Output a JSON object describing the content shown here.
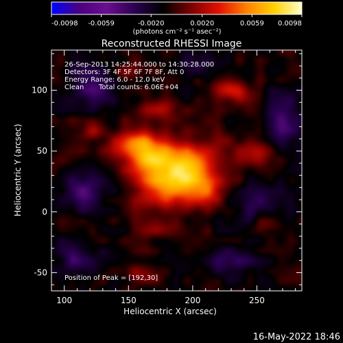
{
  "chart_data": {
    "type": "heatmap",
    "title": "Reconstructed RHESSI Image",
    "xlabel": "Heliocentric X (arcsec)",
    "ylabel": "Heliocentric Y (arcsec)",
    "xlim": [
      90,
      285
    ],
    "ylim": [
      -65,
      133
    ],
    "x_ticks": [
      100,
      150,
      200,
      250
    ],
    "y_ticks": [
      -50,
      0,
      50,
      100
    ],
    "colorbar": {
      "min": -0.0098,
      "max": 0.0098,
      "ticks": [
        -0.0098,
        -0.0059,
        -0.002,
        0.002,
        0.0059,
        0.0098
      ],
      "tick_labels": [
        "-0.0098",
        "-0.0059",
        "-0.0020",
        "0.0020",
        "0.0059",
        "0.0098"
      ],
      "unit_label": "(photons cm⁻² s⁻¹ asec⁻²)",
      "colors": [
        "#0000ff",
        "#4b0082",
        "#6a0f8e",
        "#2a0050",
        "#000000",
        "#7a0000",
        "#e01000",
        "#ff8000",
        "#ffd000",
        "#ffffc8"
      ]
    },
    "peak": {
      "x": 192,
      "y": 30
    },
    "blobs": [
      {
        "x": 190,
        "y": 30,
        "sx": 22,
        "sy": 12,
        "angle": -35,
        "amp": 0.0095
      },
      {
        "x": 155,
        "y": 55,
        "sx": 12,
        "sy": 9,
        "angle": 0,
        "amp": 0.0058
      },
      {
        "x": 170,
        "y": 45,
        "sx": 14,
        "sy": 10,
        "angle": -30,
        "amp": 0.006
      },
      {
        "x": 210,
        "y": 15,
        "sx": 12,
        "sy": 8,
        "angle": -30,
        "amp": 0.004
      },
      {
        "x": 175,
        "y": 85,
        "sx": 10,
        "sy": 6,
        "angle": 0,
        "amp": 0.003
      },
      {
        "x": 230,
        "y": 100,
        "sx": 14,
        "sy": 6,
        "angle": 10,
        "amp": 0.0032
      },
      {
        "x": 145,
        "y": 115,
        "sx": 8,
        "sy": 5,
        "angle": 0,
        "amp": 0.0025
      },
      {
        "x": 250,
        "y": 50,
        "sx": 10,
        "sy": 8,
        "angle": 0,
        "amp": 0.0025
      },
      {
        "x": 120,
        "y": 65,
        "sx": 8,
        "sy": 6,
        "angle": 0,
        "amp": 0.0022
      },
      {
        "x": 180,
        "y": -15,
        "sx": 12,
        "sy": 5,
        "angle": 0,
        "amp": 0.0024
      },
      {
        "x": 160,
        "y": -50,
        "sx": 14,
        "sy": 5,
        "angle": 0,
        "amp": 0.0015
      },
      {
        "x": 260,
        "y": -10,
        "sx": 8,
        "sy": 6,
        "angle": 0,
        "amp": 0.0018
      },
      {
        "x": 115,
        "y": 15,
        "sx": 12,
        "sy": 10,
        "angle": 0,
        "amp": -0.0035
      },
      {
        "x": 120,
        "y": 105,
        "sx": 14,
        "sy": 12,
        "angle": 0,
        "amp": -0.003
      },
      {
        "x": 270,
        "y": 75,
        "sx": 12,
        "sy": 16,
        "angle": 0,
        "amp": -0.003
      },
      {
        "x": 255,
        "y": 5,
        "sx": 14,
        "sy": 10,
        "angle": 0,
        "amp": -0.0025
      },
      {
        "x": 230,
        "y": -40,
        "sx": 14,
        "sy": 10,
        "angle": 0,
        "amp": -0.0025
      },
      {
        "x": 110,
        "y": -40,
        "sx": 12,
        "sy": 12,
        "angle": 0,
        "amp": -0.0028
      },
      {
        "x": 205,
        "y": 120,
        "sx": 10,
        "sy": 8,
        "angle": 0,
        "amp": -0.002
      }
    ]
  },
  "annotations": {
    "time_range": "26-Sep-2013 14:25:44.000 to 14:30:28.000",
    "detectors": "Detectors: 3F 4F 5F 6F 7F 8F, Att 0",
    "energy_range": "Energy Range: 6.0 - 12.0 keV",
    "method": "Clean",
    "total_counts": "Total counts: 6.06E+04",
    "peak_position": "Position of Peak = [192,30]"
  },
  "footer": {
    "timestamp": "16-May-2022 18:46"
  }
}
